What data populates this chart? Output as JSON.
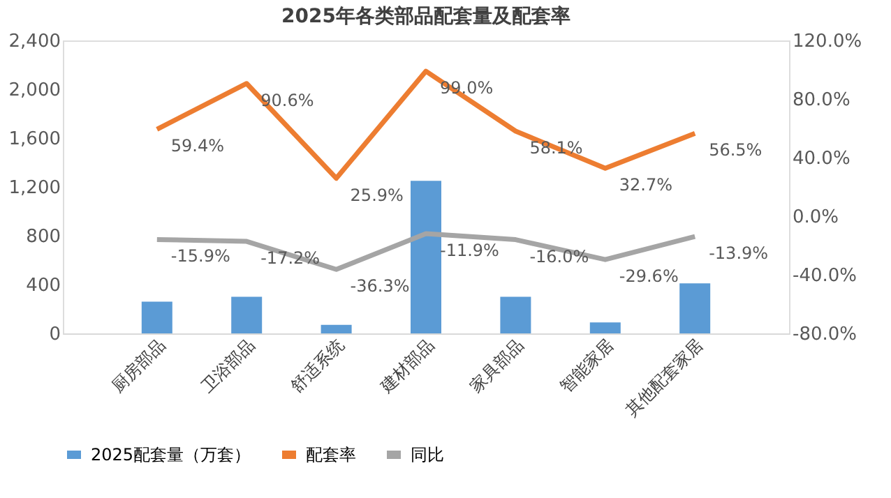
{
  "chart_data": {
    "type": "bar",
    "title": "2025年各类部品配套量及配套率",
    "categories": [
      "厨房部品",
      "卫浴部品",
      "舒适系统",
      "建材部品",
      "家具部品",
      "智能家居",
      "其他配套家居"
    ],
    "series": [
      {
        "name": "2025配套量（万套）",
        "color": "#5b9bd5",
        "values": [
          260,
          300,
          70,
          1250,
          300,
          90,
          410
        ]
      },
      {
        "name": "配套率",
        "type": "line",
        "axis": "y2",
        "color": "#ed7d31",
        "values": [
          59.4,
          90.6,
          25.9,
          99.0,
          58.1,
          32.7,
          56.5
        ],
        "value_labels": [
          "59.4%",
          "90.6%",
          "25.9%",
          "99.0%",
          "58.1%",
          "32.7%",
          "56.5%"
        ]
      },
      {
        "name": "同比",
        "type": "line",
        "axis": "y2",
        "color": "#a5a5a5",
        "values": [
          -15.9,
          -17.2,
          -36.3,
          -11.9,
          -16.0,
          -29.6,
          -13.9
        ],
        "value_labels": [
          "-15.9%",
          "-17.2%",
          "-36.3%",
          "-11.9%",
          "-16.0%",
          "-29.6%",
          "-13.9%"
        ]
      }
    ],
    "ylim": [
      0,
      2400
    ],
    "yticks": [
      {
        "value": 0,
        "label": "0"
      },
      {
        "value": 400,
        "label": "400"
      },
      {
        "value": 800,
        "label": "800"
      },
      {
        "value": 1200,
        "label": "1,200"
      },
      {
        "value": 1600,
        "label": "1,600"
      },
      {
        "value": 2000,
        "label": "2,000"
      },
      {
        "value": 2400,
        "label": "2,400"
      }
    ],
    "y2lim": [
      -80,
      120
    ],
    "y2ticks": [
      {
        "value": -80,
        "label": "-80.0%"
      },
      {
        "value": -40,
        "label": "-40.0%"
      },
      {
        "value": 0,
        "label": "0.0%"
      },
      {
        "value": 40,
        "label": "40.0%"
      },
      {
        "value": 80,
        "label": "80.0%"
      },
      {
        "value": 120,
        "label": "120.0%"
      }
    ],
    "grid": false,
    "legend": "bottom",
    "marker": "none",
    "line_style": "solid"
  }
}
